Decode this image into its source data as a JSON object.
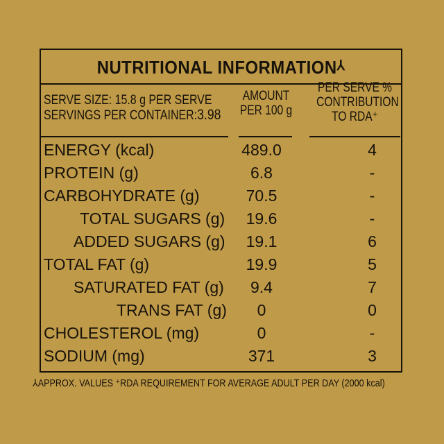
{
  "table": {
    "title": "NUTRITIONAL INFORMATION",
    "title_mark": "⅄",
    "serve_size": "SERVE SIZE: 15.8 g PER SERVE",
    "servings_label": "SERVINGS PER CONTAINER:",
    "servings_value": "3.98",
    "amount_header_line1": "AMOUNT",
    "amount_header_line2": "PER 100 g",
    "rda_header_line1": "PER SERVE %",
    "rda_header_line2": "CONTRIBUTION",
    "rda_header_line3": "TO RDA⁺",
    "rows": [
      {
        "nutrient": "ENERGY (kcal)",
        "amount": "489.0",
        "rda": "4"
      },
      {
        "nutrient": "PROTEIN (g)",
        "amount": "6.8",
        "rda": "-"
      },
      {
        "nutrient": "CARBOHYDRATE (g)",
        "amount": "70.5",
        "rda": "-"
      },
      {
        "nutrient": "TOTAL SUGARS (g)",
        "amount": "19.6",
        "rda": "-"
      },
      {
        "nutrient": "ADDED SUGARS (g)",
        "amount": "19.1",
        "rda": "6"
      },
      {
        "nutrient": "TOTAL FAT (g)",
        "amount": "19.9",
        "rda": "5"
      },
      {
        "nutrient": "SATURATED FAT (g)",
        "amount": "9.4",
        "rda": "7"
      },
      {
        "nutrient": "TRANS FAT (g)",
        "amount": "0",
        "rda": "0"
      },
      {
        "nutrient": "CHOLESTEROL (mg)",
        "amount": "0",
        "rda": "-"
      },
      {
        "nutrient": "SODIUM (mg)",
        "amount": "371",
        "rda": "3"
      }
    ]
  },
  "footnote": "⅄APPROX. VALUES ⁺RDA REQUIREMENT FOR AVERAGE ADULT PER DAY (2000 kcal)",
  "colors": {
    "background": "#bf9a48",
    "ink": "#17120a"
  }
}
